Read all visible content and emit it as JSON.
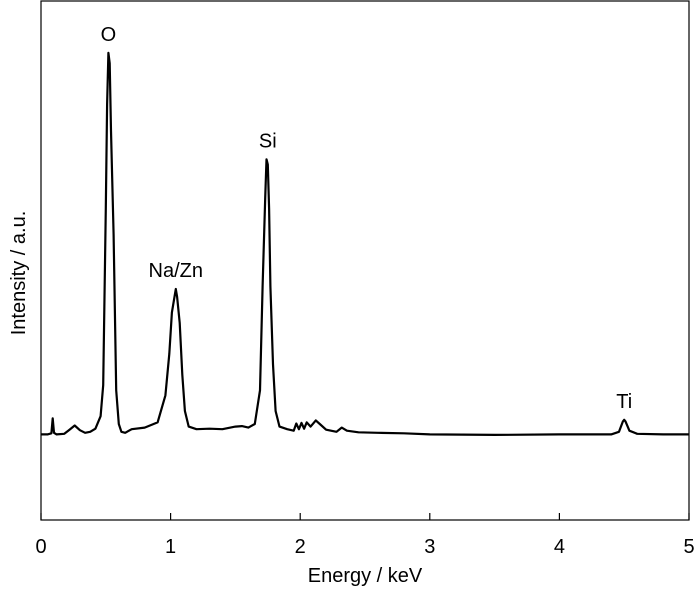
{
  "chart_data": {
    "type": "line",
    "title": "",
    "xlabel": "Energy / keV",
    "ylabel": "Intensity / a.u.",
    "xlim": [
      0,
      5
    ],
    "ylim": [
      0,
      100
    ],
    "x_ticks": [
      0,
      1,
      2,
      3,
      4,
      5
    ],
    "x_tick_labels": [
      "0",
      "1",
      "2",
      "3",
      "4",
      "5"
    ],
    "grid": false,
    "legend": "none",
    "series": [
      {
        "color": "#000000",
        "x": [
          0.0,
          0.05,
          0.08,
          0.09,
          0.1,
          0.12,
          0.18,
          0.22,
          0.26,
          0.3,
          0.34,
          0.38,
          0.42,
          0.46,
          0.48,
          0.5,
          0.51,
          0.52,
          0.53,
          0.54,
          0.56,
          0.58,
          0.6,
          0.62,
          0.65,
          0.7,
          0.8,
          0.9,
          0.96,
          0.99,
          1.01,
          1.03,
          1.04,
          1.05,
          1.07,
          1.09,
          1.11,
          1.14,
          1.2,
          1.3,
          1.4,
          1.5,
          1.55,
          1.6,
          1.65,
          1.69,
          1.71,
          1.73,
          1.74,
          1.75,
          1.76,
          1.77,
          1.79,
          1.81,
          1.84,
          1.9,
          1.95,
          1.97,
          1.99,
          2.01,
          2.03,
          2.05,
          2.08,
          2.12,
          2.16,
          2.2,
          2.28,
          2.32,
          2.36,
          2.45,
          2.6,
          2.8,
          3.0,
          3.5,
          4.0,
          4.4,
          4.46,
          4.49,
          4.5,
          4.51,
          4.54,
          4.6,
          4.8,
          5.0
        ],
        "y": [
          16.5,
          16.5,
          16.7,
          19.6,
          16.8,
          16.5,
          16.6,
          17.4,
          18.2,
          17.3,
          16.8,
          17.0,
          17.6,
          20.0,
          26.0,
          60.0,
          80.0,
          90.0,
          88.0,
          75.0,
          55.0,
          25.0,
          18.5,
          17.0,
          16.8,
          17.5,
          17.8,
          18.8,
          24.0,
          32.0,
          40.0,
          43.0,
          44.5,
          43.0,
          38.0,
          28.0,
          21.0,
          18.0,
          17.5,
          17.6,
          17.5,
          18.0,
          18.1,
          17.8,
          18.5,
          25.0,
          45.0,
          62.0,
          69.5,
          68.5,
          60.0,
          45.0,
          30.0,
          21.0,
          18.0,
          17.5,
          17.2,
          18.6,
          17.5,
          18.7,
          17.6,
          18.8,
          18.0,
          19.2,
          18.3,
          17.4,
          17.0,
          17.8,
          17.2,
          16.9,
          16.8,
          16.7,
          16.5,
          16.4,
          16.5,
          16.5,
          17.0,
          19.0,
          19.3,
          19.0,
          17.2,
          16.6,
          16.5,
          16.5
        ]
      }
    ],
    "annotations": [
      {
        "text": "O",
        "x": 0.52,
        "y": 90.0
      },
      {
        "text": "Na/Zn",
        "x": 1.04,
        "y": 44.5
      },
      {
        "text": "Si",
        "x": 1.75,
        "y": 69.5
      },
      {
        "text": "Ti",
        "x": 4.5,
        "y": 19.3
      }
    ]
  }
}
